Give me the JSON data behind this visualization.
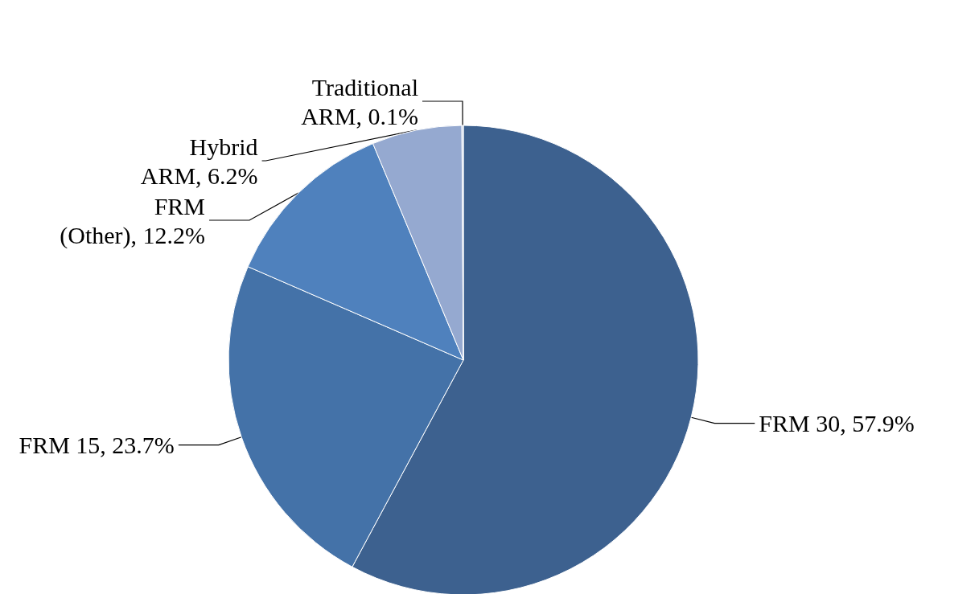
{
  "chart_data": {
    "type": "pie",
    "categories": [
      "FRM 30",
      "FRM 15",
      "FRM (Other)",
      "Hybrid ARM",
      "Traditional ARM"
    ],
    "values": [
      57.9,
      23.7,
      12.2,
      6.2,
      0.1
    ],
    "colors": [
      "#3d618f",
      "#4472a8",
      "#4f81bd",
      "#95a9d0",
      "#b9c8e2"
    ],
    "value_labels": [
      "57.9%",
      "23.7%",
      "12.2%",
      "6.2%",
      "0.1%"
    ],
    "legend": false
  }
}
